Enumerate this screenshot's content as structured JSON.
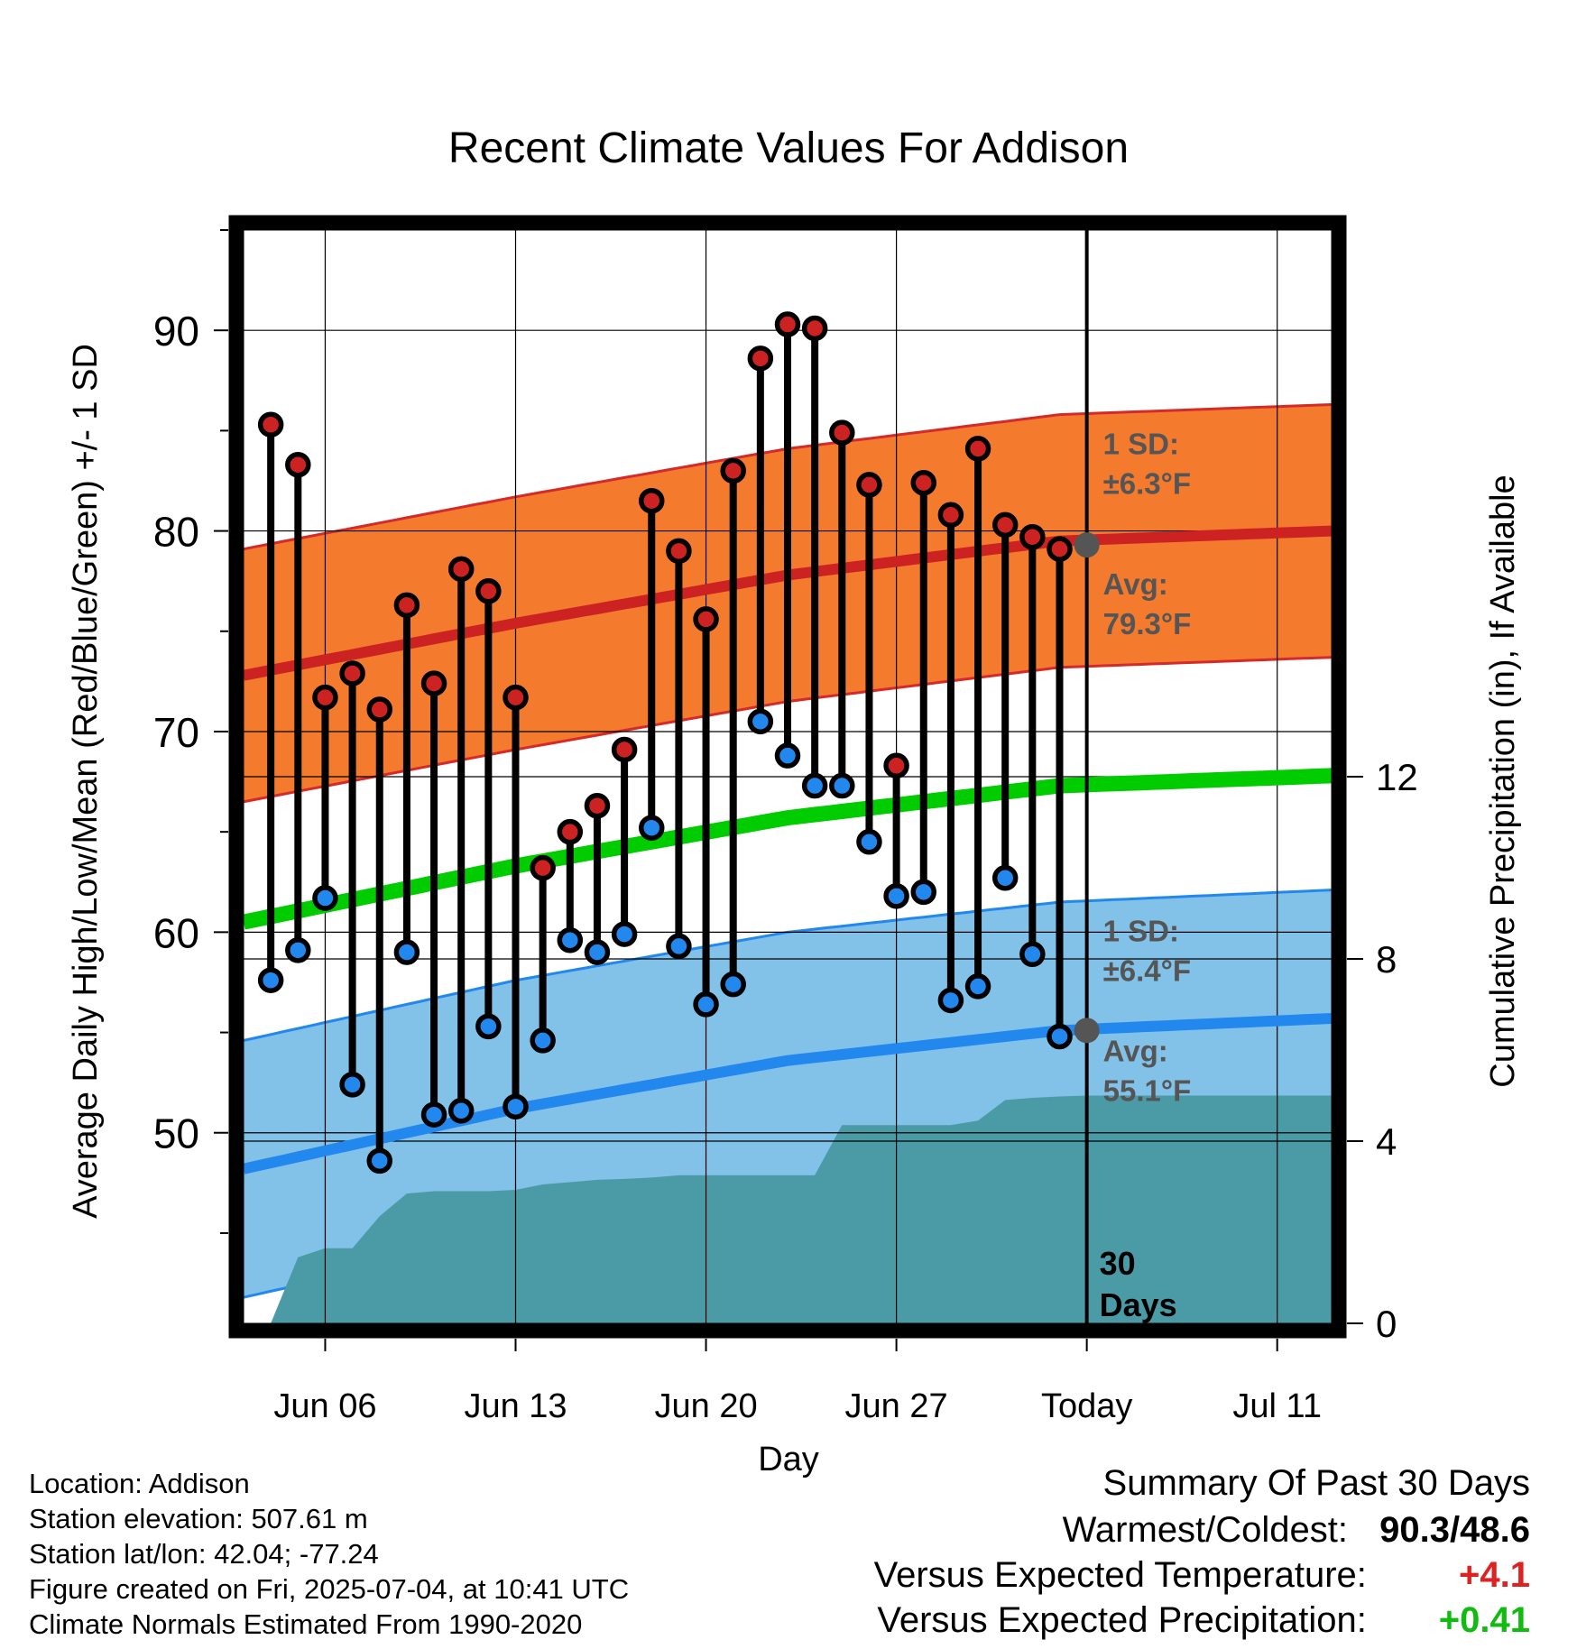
{
  "chart_data": {
    "type": "line",
    "title": "Recent Climate Values For Addison",
    "xlabel": "Day",
    "ylabel": "Average Daily High/Low/Mean (Red/Blue/Green) +/- 1 SD",
    "y2label": "Cumulative Precipitation (in), If Available",
    "x_tick_labels": [
      "Jun 06",
      "Jun 13",
      "Jun 20",
      "Jun 27",
      "Today",
      "Jul 11"
    ],
    "x_tick_dates": [
      "2025-06-06",
      "2025-06-13",
      "2025-06-20",
      "2025-06-27",
      "2025-07-04",
      "2025-07-11"
    ],
    "xlim": [
      "2025-06-03",
      "2025-07-13"
    ],
    "ylim": [
      40.5,
      95
    ],
    "y_ticks": [
      50,
      60,
      70,
      80,
      90
    ],
    "y2lim": [
      0,
      24
    ],
    "y2_ticks": [
      0,
      4,
      8,
      12
    ],
    "today": "2025-07-04",
    "today_label_lines": [
      "30",
      "Days"
    ],
    "grid": true,
    "colors": {
      "high": "#cc2222",
      "low": "#2288ee",
      "mean": "#00cc00",
      "high_band": "#f47a2e",
      "high_band_edge": "#d42a2a",
      "low_band": "#82c1e8",
      "low_band_edge": "#2288ee",
      "precip": "#4a9ba5",
      "annotation": "#555555",
      "plus_red": "#dd2222",
      "plus_green": "#11bb11"
    },
    "days": [
      "2025-06-04",
      "2025-06-05",
      "2025-06-06",
      "2025-06-07",
      "2025-06-08",
      "2025-06-09",
      "2025-06-10",
      "2025-06-11",
      "2025-06-12",
      "2025-06-13",
      "2025-06-14",
      "2025-06-15",
      "2025-06-16",
      "2025-06-17",
      "2025-06-18",
      "2025-06-19",
      "2025-06-20",
      "2025-06-21",
      "2025-06-22",
      "2025-06-23",
      "2025-06-24",
      "2025-06-25",
      "2025-06-26",
      "2025-06-27",
      "2025-06-28",
      "2025-06-29",
      "2025-06-30",
      "2025-07-01",
      "2025-07-02",
      "2025-07-03"
    ],
    "series": [
      {
        "name": "High",
        "values": [
          85.3,
          83.3,
          71.7,
          72.9,
          71.1,
          76.3,
          72.4,
          78.1,
          77.0,
          71.7,
          63.2,
          65.0,
          66.3,
          69.1,
          81.5,
          79.0,
          75.6,
          83.0,
          88.6,
          90.3,
          90.1,
          84.9,
          82.3,
          68.3,
          82.4,
          80.8,
          84.1,
          80.3,
          79.7,
          79.1
        ]
      },
      {
        "name": "Low",
        "values": [
          57.6,
          59.1,
          61.7,
          52.4,
          48.6,
          59.0,
          50.9,
          51.1,
          55.3,
          51.3,
          54.6,
          59.6,
          59.0,
          59.9,
          65.2,
          59.3,
          56.4,
          57.4,
          70.5,
          68.8,
          67.3,
          67.3,
          64.5,
          61.8,
          62.0,
          56.6,
          57.3,
          62.7,
          58.9,
          54.8
        ]
      }
    ],
    "normals": {
      "days": [
        "2025-06-03",
        "2025-06-13",
        "2025-06-23",
        "2025-07-03",
        "2025-07-13"
      ],
      "high_avg": [
        72.8,
        75.4,
        77.8,
        79.5,
        80.0
      ],
      "low_avg": [
        48.2,
        51.2,
        53.6,
        55.1,
        55.7
      ],
      "mean_avg": [
        60.5,
        63.3,
        65.7,
        67.3,
        67.8
      ]
    },
    "sd_labels": {
      "high_sd": "±6.3°F",
      "high_avg": "79.3°F",
      "low_sd": "±6.4°F",
      "low_avg": "55.1°F",
      "sd_prefix": "1 SD:",
      "avg_prefix": "Avg:"
    },
    "precip": {
      "days": [
        "2025-06-03",
        "2025-06-04",
        "2025-06-05",
        "2025-06-06",
        "2025-06-07",
        "2025-06-08",
        "2025-06-09",
        "2025-06-10",
        "2025-06-11",
        "2025-06-12",
        "2025-06-13",
        "2025-06-14",
        "2025-06-15",
        "2025-06-16",
        "2025-06-17",
        "2025-06-18",
        "2025-06-19",
        "2025-06-20",
        "2025-06-21",
        "2025-06-22",
        "2025-06-23",
        "2025-06-24",
        "2025-06-25",
        "2025-06-26",
        "2025-06-27",
        "2025-06-28",
        "2025-06-29",
        "2025-06-30",
        "2025-07-01",
        "2025-07-02",
        "2025-07-03",
        "2025-07-04",
        "2025-07-13"
      ],
      "values": [
        0.0,
        0.0,
        1.45,
        1.65,
        1.65,
        2.35,
        2.85,
        2.9,
        2.9,
        2.9,
        2.93,
        3.05,
        3.1,
        3.15,
        3.17,
        3.2,
        3.25,
        3.25,
        3.25,
        3.25,
        3.25,
        3.25,
        4.35,
        4.35,
        4.35,
        4.35,
        4.35,
        4.45,
        4.9,
        4.95,
        4.98,
        5.0,
        5.0
      ]
    }
  },
  "station_info": [
    "Location: Addison",
    "Station elevation: 507.61 m",
    "Station lat/lon: 42.04; -77.24",
    "Figure created on Fri, 2025-07-04, at 10:41 UTC",
    "Climate Normals Estimated From 1990-2020"
  ],
  "summary": {
    "title": "Summary Of Past 30 Days",
    "warm_cold_label": "Warmest/Coldest:",
    "warmest": "90.3",
    "coldest": "48.6",
    "temp_label": "Versus Expected Temperature:",
    "temp_value": "+4.1",
    "precip_label": "Versus Expected Precipitation:",
    "precip_value": "+0.41"
  }
}
